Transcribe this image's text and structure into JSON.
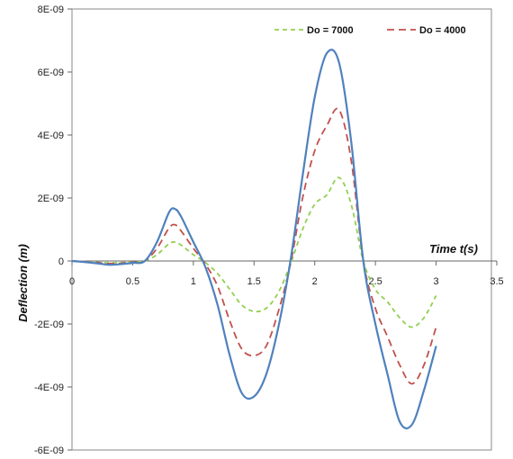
{
  "chart_data": {
    "type": "line",
    "xlabel": "Time t(s)",
    "ylabel": "Deflection (m)",
    "xlim": [
      0,
      3.5
    ],
    "ylim": [
      -6e-09,
      8e-09
    ],
    "x_ticks": [
      "0",
      "0.5",
      "1",
      "1.5",
      "2",
      "2.5",
      "3",
      "3.5"
    ],
    "y_ticks": [
      "8E-09",
      "6E-09",
      "4E-09",
      "2E-09",
      "0",
      "-2E-09",
      "-4E-09",
      "-6E-09"
    ],
    "grid": false,
    "legend_position": "top-right",
    "x": [
      0,
      0.1,
      0.2,
      0.3,
      0.4,
      0.5,
      0.6,
      0.7,
      0.8,
      0.85,
      0.9,
      1.0,
      1.1,
      1.2,
      1.3,
      1.4,
      1.5,
      1.6,
      1.7,
      1.8,
      1.9,
      2.0,
      2.1,
      2.2,
      2.3,
      2.4,
      2.5,
      2.6,
      2.7,
      2.8,
      2.9,
      3.0
    ],
    "series": [
      {
        "name": "Do = 7000",
        "color": "#92d050",
        "dash": "short-dash",
        "values": [
          0,
          -2e-11,
          -4e-11,
          -6e-11,
          -5e-11,
          -3e-11,
          0.0,
          2e-10,
          5.5e-10,
          6e-10,
          5e-10,
          2e-10,
          -5e-11,
          -4e-10,
          -9e-10,
          -1.4e-09,
          -1.6e-09,
          -1.5e-09,
          -1e-09,
          -1e-10,
          1e-09,
          1.8e-09,
          2.1e-09,
          2.65e-09,
          1.8e-09,
          0.0,
          -9e-10,
          -1.3e-09,
          -1.8e-09,
          -2.1e-09,
          -1.8e-09,
          -1.1e-09
        ]
      },
      {
        "name": "Do = 4000",
        "color": "#c0504d",
        "dash": "long-dash",
        "values": [
          0,
          -2e-11,
          -5e-11,
          -8e-11,
          -7e-11,
          -4e-11,
          0.0,
          4e-10,
          1.05e-09,
          1.15e-09,
          9.5e-10,
          4e-10,
          -1e-10,
          -8e-10,
          -1.9e-09,
          -2.8e-09,
          -3e-09,
          -2.7e-09,
          -1.6e-09,
          -1e-10,
          2e-09,
          3.5e-09,
          4.3e-09,
          4.8e-09,
          3.2e-09,
          0.0,
          -1.5e-09,
          -2.4e-09,
          -3.3e-09,
          -3.9e-09,
          -3.3e-09,
          -2.1e-09
        ]
      },
      {
        "name": "",
        "color": "#4f81bd",
        "dash": "solid",
        "values": [
          0,
          -3e-11,
          -7e-11,
          -1.2e-10,
          -1e-10,
          -6e-11,
          0.0,
          6e-10,
          1.55e-09,
          1.65e-09,
          1.4e-09,
          6e-10,
          -2e-10,
          -1.4e-09,
          -3e-09,
          -4.2e-09,
          -4.3e-09,
          -3.6e-09,
          -2.1e-09,
          0.0,
          2.7e-09,
          5.2e-09,
          6.6e-09,
          6.3e-09,
          3.8e-09,
          0.0,
          -2e-09,
          -3.6e-09,
          -5.1e-09,
          -5.2e-09,
          -4.1e-09,
          -2.7e-09
        ]
      }
    ]
  }
}
